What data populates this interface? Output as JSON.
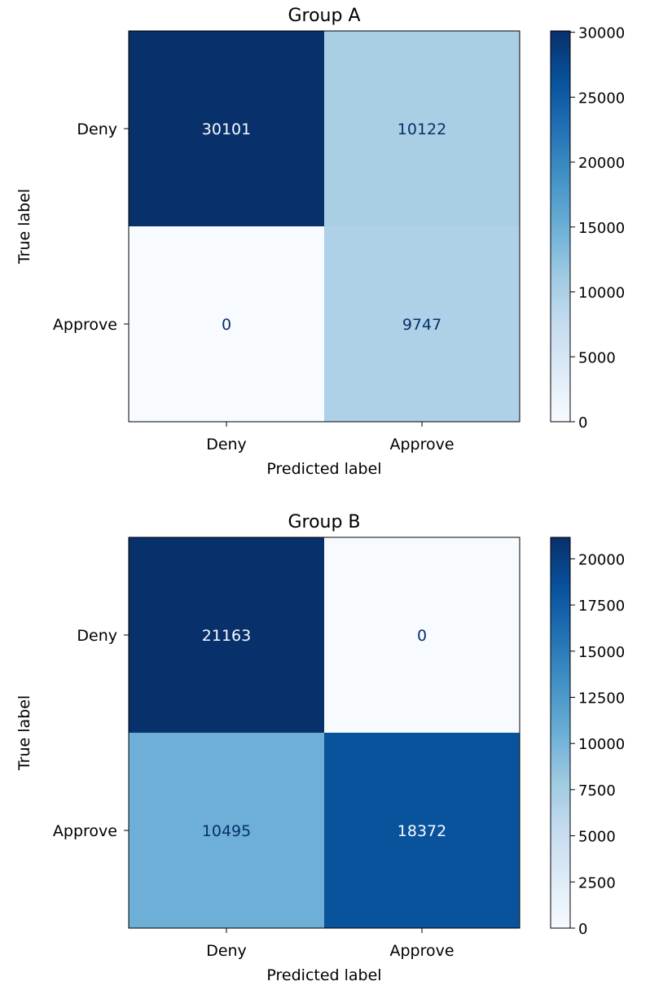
{
  "chart_data": [
    {
      "type": "heatmap",
      "title": "Group A",
      "xlabel": "Predicted label",
      "ylabel": "True label",
      "x_categories": [
        "Deny",
        "Approve"
      ],
      "y_categories": [
        "Deny",
        "Approve"
      ],
      "values": [
        [
          30101,
          10122
        ],
        [
          0,
          9747
        ]
      ],
      "colormap": "Blues",
      "color_range": [
        0,
        30101
      ],
      "colorbar_ticks": [
        0,
        5000,
        10000,
        15000,
        20000,
        25000,
        30000
      ]
    },
    {
      "type": "heatmap",
      "title": "Group B",
      "xlabel": "Predicted label",
      "ylabel": "True label",
      "x_categories": [
        "Deny",
        "Approve"
      ],
      "y_categories": [
        "Deny",
        "Approve"
      ],
      "values": [
        [
          21163,
          0
        ],
        [
          10495,
          18372
        ]
      ],
      "colormap": "Blues",
      "color_range": [
        0,
        21163
      ],
      "colorbar_ticks": [
        0,
        2500,
        5000,
        7500,
        10000,
        12500,
        15000,
        17500,
        20000
      ]
    }
  ]
}
